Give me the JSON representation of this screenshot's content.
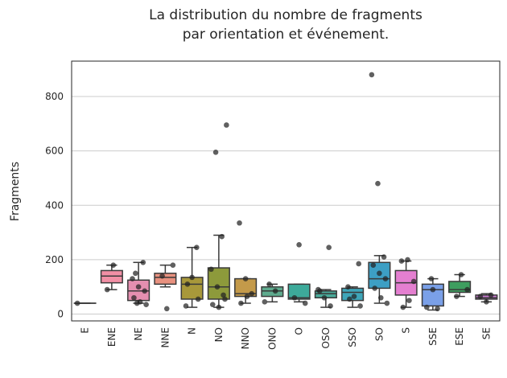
{
  "chart_data": {
    "type": "box",
    "title": "La distribution du nombre de fragments par orientation et événement.",
    "title_lines": [
      "La distribution du nombre de fragments",
      "par orientation et événement."
    ],
    "xlabel": "",
    "ylabel": "Fragments",
    "ylim": [
      -25,
      930
    ],
    "yticks": [
      0,
      200,
      400,
      600,
      800
    ],
    "grid": "horizontal",
    "categories": [
      "E",
      "ENE",
      "NE",
      "NNE",
      "N",
      "NO",
      "NNO",
      "ONO",
      "O",
      "OSO",
      "SSO",
      "SO",
      "S",
      "SSE",
      "ESE",
      "SE"
    ],
    "colors": [
      "#e8a96f",
      "#f18fa5",
      "#e58fb0",
      "#e8917f",
      "#a8983a",
      "#8d9a3b",
      "#c49a4a",
      "#5fab8e",
      "#3daa9a",
      "#4aab9a",
      "#3ea6b9",
      "#3d9fc4",
      "#e47fd0",
      "#7aa0e8",
      "#3e9e5f",
      "#c87ad0"
    ],
    "boxes": [
      {
        "min": 40,
        "q1": 40,
        "median": 40,
        "q3": 40,
        "max": 40
      },
      {
        "min": 90,
        "q1": 115,
        "median": 140,
        "q3": 160,
        "max": 180
      },
      {
        "min": 40,
        "q1": 50,
        "median": 85,
        "q3": 125,
        "max": 190
      },
      {
        "min": 100,
        "q1": 110,
        "median": 135,
        "q3": 150,
        "max": 180
      },
      {
        "min": 25,
        "q1": 55,
        "median": 110,
        "q3": 135,
        "max": 245
      },
      {
        "min": 25,
        "q1": 55,
        "median": 100,
        "q3": 170,
        "max": 290
      },
      {
        "min": 40,
        "q1": 65,
        "median": 75,
        "q3": 130,
        "max": 130
      },
      {
        "min": 45,
        "q1": 65,
        "median": 85,
        "q3": 100,
        "max": 110
      },
      {
        "min": 45,
        "q1": 55,
        "median": 60,
        "q3": 110,
        "max": 110
      },
      {
        "min": 25,
        "q1": 60,
        "median": 75,
        "q3": 85,
        "max": 90
      },
      {
        "min": 25,
        "q1": 50,
        "median": 80,
        "q3": 95,
        "max": 100
      },
      {
        "min": 40,
        "q1": 95,
        "median": 130,
        "q3": 190,
        "max": 215
      },
      {
        "min": 25,
        "q1": 70,
        "median": 115,
        "q3": 160,
        "max": 195
      },
      {
        "min": 15,
        "q1": 30,
        "median": 90,
        "q3": 110,
        "max": 130
      },
      {
        "min": 65,
        "q1": 80,
        "median": 90,
        "q3": 120,
        "max": 145
      },
      {
        "min": 45,
        "q1": 55,
        "median": 60,
        "q3": 70,
        "max": 75
      }
    ],
    "points": [
      [
        40
      ],
      [
        90,
        180
      ],
      [
        40,
        190,
        130,
        100,
        85,
        60,
        45,
        35,
        150
      ],
      [
        20,
        180,
        140
      ],
      [
        245,
        30,
        135,
        55,
        110
      ],
      [
        695,
        595,
        285,
        165,
        100,
        70,
        35,
        25,
        55
      ],
      [
        335,
        130,
        75,
        40,
        65
      ],
      [
        110,
        85,
        45
      ],
      [
        255,
        40,
        60
      ],
      [
        245,
        90,
        60,
        30,
        85
      ],
      [
        185,
        100,
        65,
        30,
        55
      ],
      [
        880,
        480,
        210,
        180,
        150,
        130,
        95,
        60,
        40
      ],
      [
        195,
        200,
        120,
        25,
        50
      ],
      [
        130,
        20,
        25,
        90
      ],
      [
        145,
        90,
        65
      ],
      [
        70,
        65,
        45
      ]
    ]
  }
}
